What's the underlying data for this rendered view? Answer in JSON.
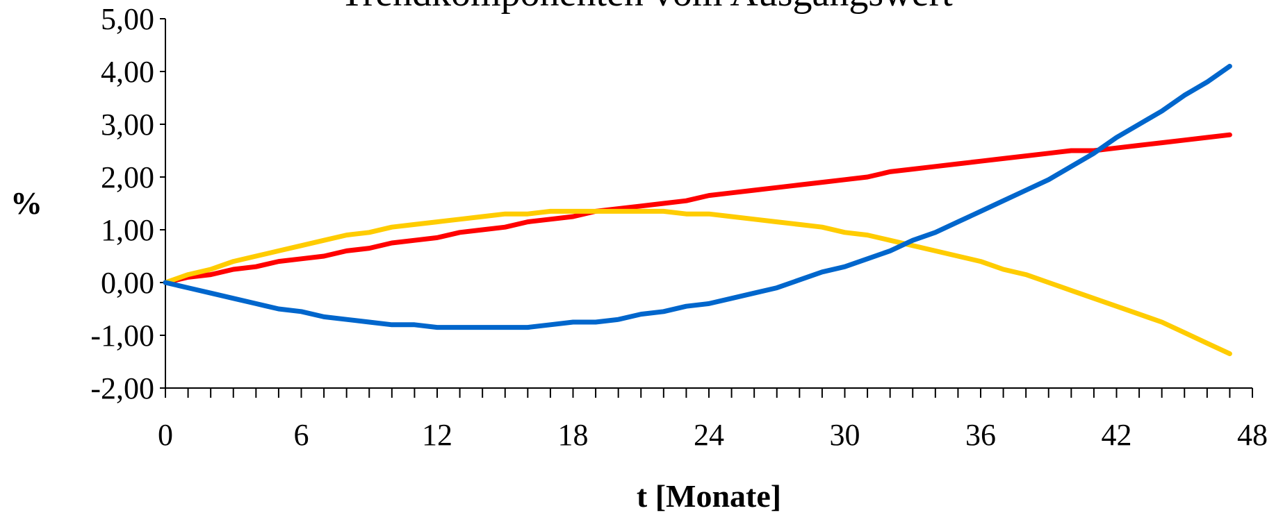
{
  "chart_data": {
    "type": "line",
    "title": "Trendkomponenten vom Ausgangswert",
    "xlabel": "t [Monate]",
    "ylabel": "%",
    "xlim": [
      0,
      48
    ],
    "ylim": [
      -2,
      5
    ],
    "x_ticks": [
      "0",
      "6",
      "12",
      "18",
      "24",
      "30",
      "36",
      "42",
      "48"
    ],
    "y_ticks": [
      "5,00",
      "4,00",
      "3,00",
      "2,00",
      "1,00",
      "0,00",
      "-1,00",
      "-2,00"
    ],
    "grid": false,
    "legend": "none",
    "x": [
      0,
      1,
      2,
      3,
      4,
      5,
      6,
      7,
      8,
      9,
      10,
      11,
      12,
      13,
      14,
      15,
      16,
      17,
      18,
      19,
      20,
      21,
      22,
      23,
      24,
      25,
      26,
      27,
      28,
      29,
      30,
      31,
      32,
      33,
      34,
      35,
      36,
      37,
      38,
      39,
      40,
      41,
      42,
      43,
      44,
      45,
      46,
      47
    ],
    "series": [
      {
        "color": "#ff0000",
        "values": [
          0.0,
          0.1,
          0.15,
          0.25,
          0.3,
          0.4,
          0.45,
          0.5,
          0.6,
          0.65,
          0.75,
          0.8,
          0.85,
          0.95,
          1.0,
          1.05,
          1.15,
          1.2,
          1.25,
          1.35,
          1.4,
          1.45,
          1.5,
          1.55,
          1.65,
          1.7,
          1.75,
          1.8,
          1.85,
          1.9,
          1.95,
          2.0,
          2.1,
          2.15,
          2.2,
          2.25,
          2.3,
          2.35,
          2.4,
          2.45,
          2.5,
          2.5,
          2.55,
          2.6,
          2.65,
          2.7,
          2.75,
          2.8
        ]
      },
      {
        "color": "#ffcc00",
        "values": [
          0.0,
          0.15,
          0.25,
          0.4,
          0.5,
          0.6,
          0.7,
          0.8,
          0.9,
          0.95,
          1.05,
          1.1,
          1.15,
          1.2,
          1.25,
          1.3,
          1.3,
          1.35,
          1.35,
          1.35,
          1.35,
          1.35,
          1.35,
          1.3,
          1.3,
          1.25,
          1.2,
          1.15,
          1.1,
          1.05,
          0.95,
          0.9,
          0.8,
          0.7,
          0.6,
          0.5,
          0.4,
          0.25,
          0.15,
          0.0,
          -0.15,
          -0.3,
          -0.45,
          -0.6,
          -0.75,
          -0.95,
          -1.15,
          -1.35
        ]
      },
      {
        "color": "#0066cc",
        "values": [
          0.0,
          -0.1,
          -0.2,
          -0.3,
          -0.4,
          -0.5,
          -0.55,
          -0.65,
          -0.7,
          -0.75,
          -0.8,
          -0.8,
          -0.85,
          -0.85,
          -0.85,
          -0.85,
          -0.85,
          -0.8,
          -0.75,
          -0.75,
          -0.7,
          -0.6,
          -0.55,
          -0.45,
          -0.4,
          -0.3,
          -0.2,
          -0.1,
          0.05,
          0.2,
          0.3,
          0.45,
          0.6,
          0.8,
          0.95,
          1.15,
          1.35,
          1.55,
          1.75,
          1.95,
          2.2,
          2.45,
          2.75,
          3.0,
          3.25,
          3.55,
          3.8,
          4.1
        ]
      }
    ]
  }
}
